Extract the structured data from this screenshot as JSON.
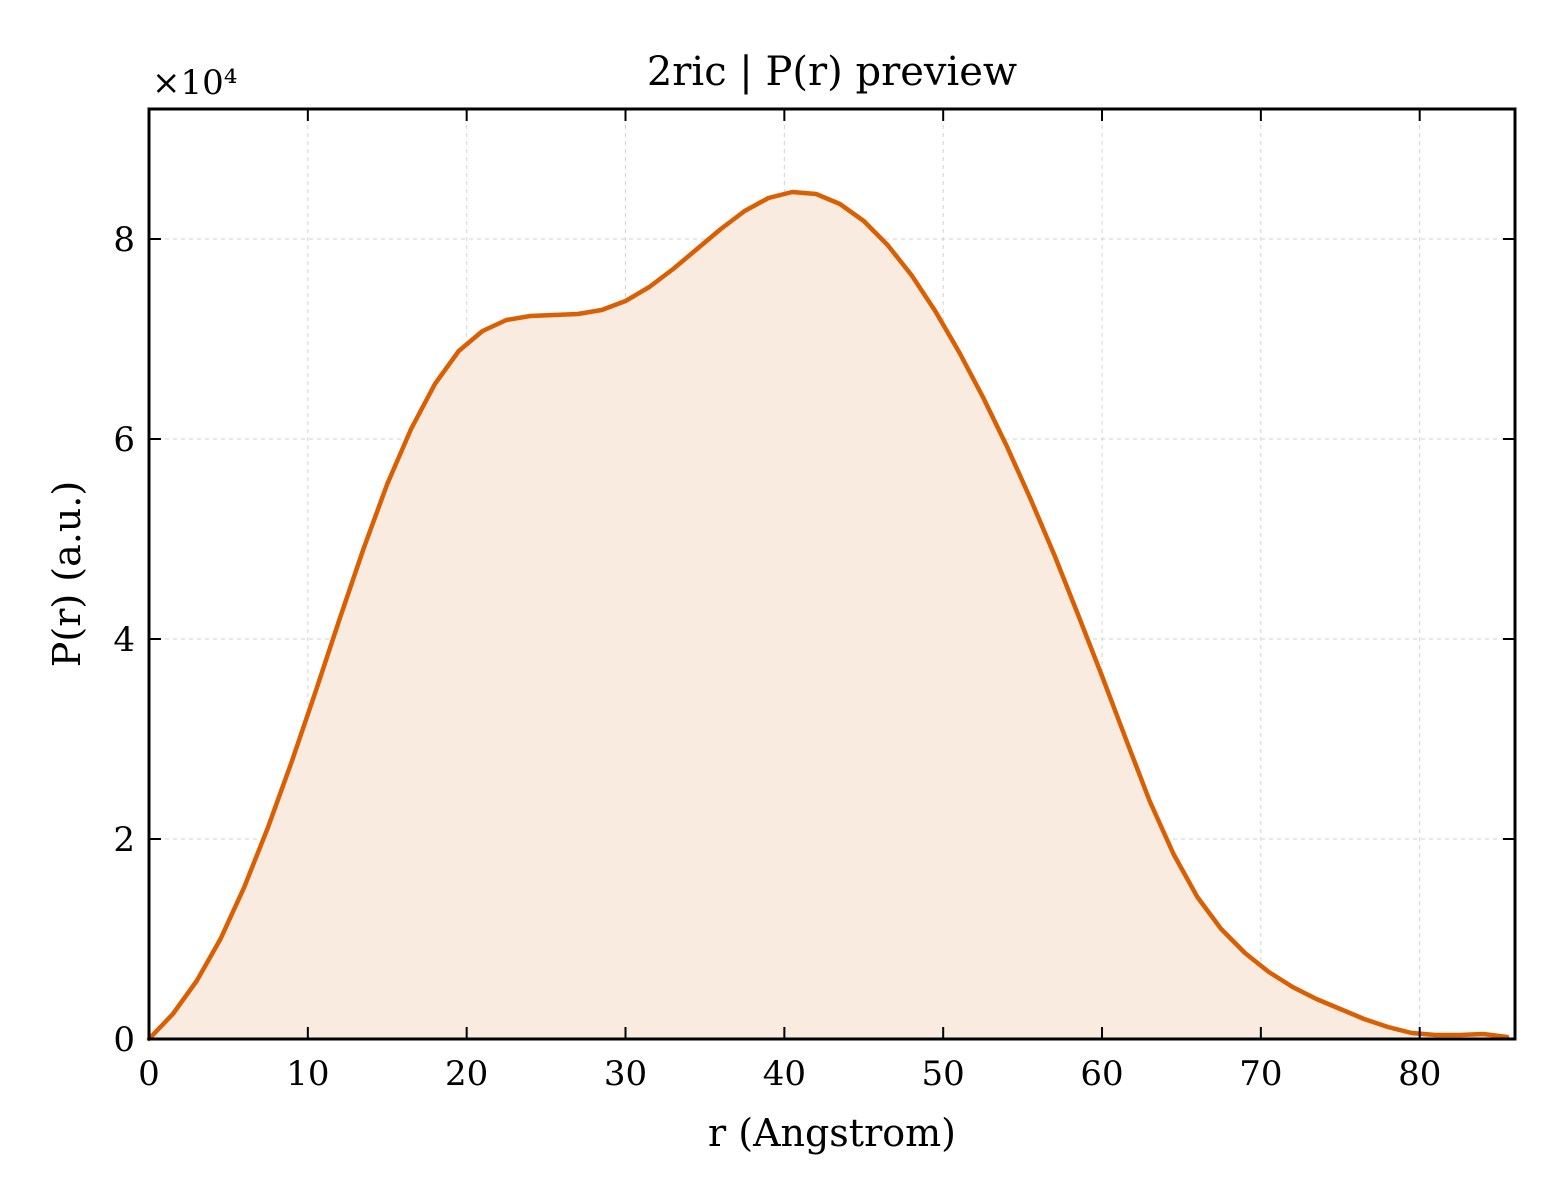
{
  "chart_data": {
    "type": "area",
    "title": "2ric | P(r) preview",
    "xlabel": "r (Angstrom)",
    "ylabel": "P(r) (a.u.)",
    "y_multiplier_label": "×10⁴",
    "xlim": [
      0,
      86
    ],
    "ylim": [
      0,
      9.3
    ],
    "xticks": [
      0,
      10,
      20,
      30,
      40,
      50,
      60,
      70,
      80
    ],
    "yticks": [
      0,
      2,
      4,
      6,
      8
    ],
    "grid": true,
    "line_color": "#d95f02",
    "fill_color": "#f9ebe0",
    "series": [
      {
        "x": [
          0,
          1.5,
          3,
          4.5,
          6,
          7.5,
          9,
          10.5,
          12,
          13.5,
          15,
          16.5,
          18,
          19.5,
          21,
          22.5,
          24,
          25.5,
          27,
          28.5,
          30,
          31.5,
          33,
          34.5,
          36,
          37.5,
          39,
          40.5,
          42,
          43.5,
          45,
          46.5,
          48,
          49.5,
          51,
          52.5,
          54,
          55.5,
          57,
          58.5,
          60,
          61.5,
          63,
          64.5,
          66,
          67.5,
          69,
          70.5,
          72,
          73.5,
          75,
          76.5,
          78,
          79.5,
          81,
          82.5,
          84,
          85.5
        ],
        "y": [
          0.0,
          0.25,
          0.58,
          1.0,
          1.52,
          2.12,
          2.78,
          3.48,
          4.2,
          4.9,
          5.55,
          6.1,
          6.55,
          6.88,
          7.08,
          7.19,
          7.23,
          7.24,
          7.25,
          7.29,
          7.38,
          7.52,
          7.7,
          7.9,
          8.1,
          8.28,
          8.41,
          8.47,
          8.45,
          8.35,
          8.18,
          7.94,
          7.64,
          7.28,
          6.87,
          6.42,
          5.93,
          5.4,
          4.84,
          4.24,
          3.63,
          3.0,
          2.38,
          1.85,
          1.42,
          1.1,
          0.86,
          0.67,
          0.52,
          0.4,
          0.3,
          0.2,
          0.12,
          0.06,
          0.04,
          0.04,
          0.05,
          0.02
        ]
      }
    ]
  }
}
